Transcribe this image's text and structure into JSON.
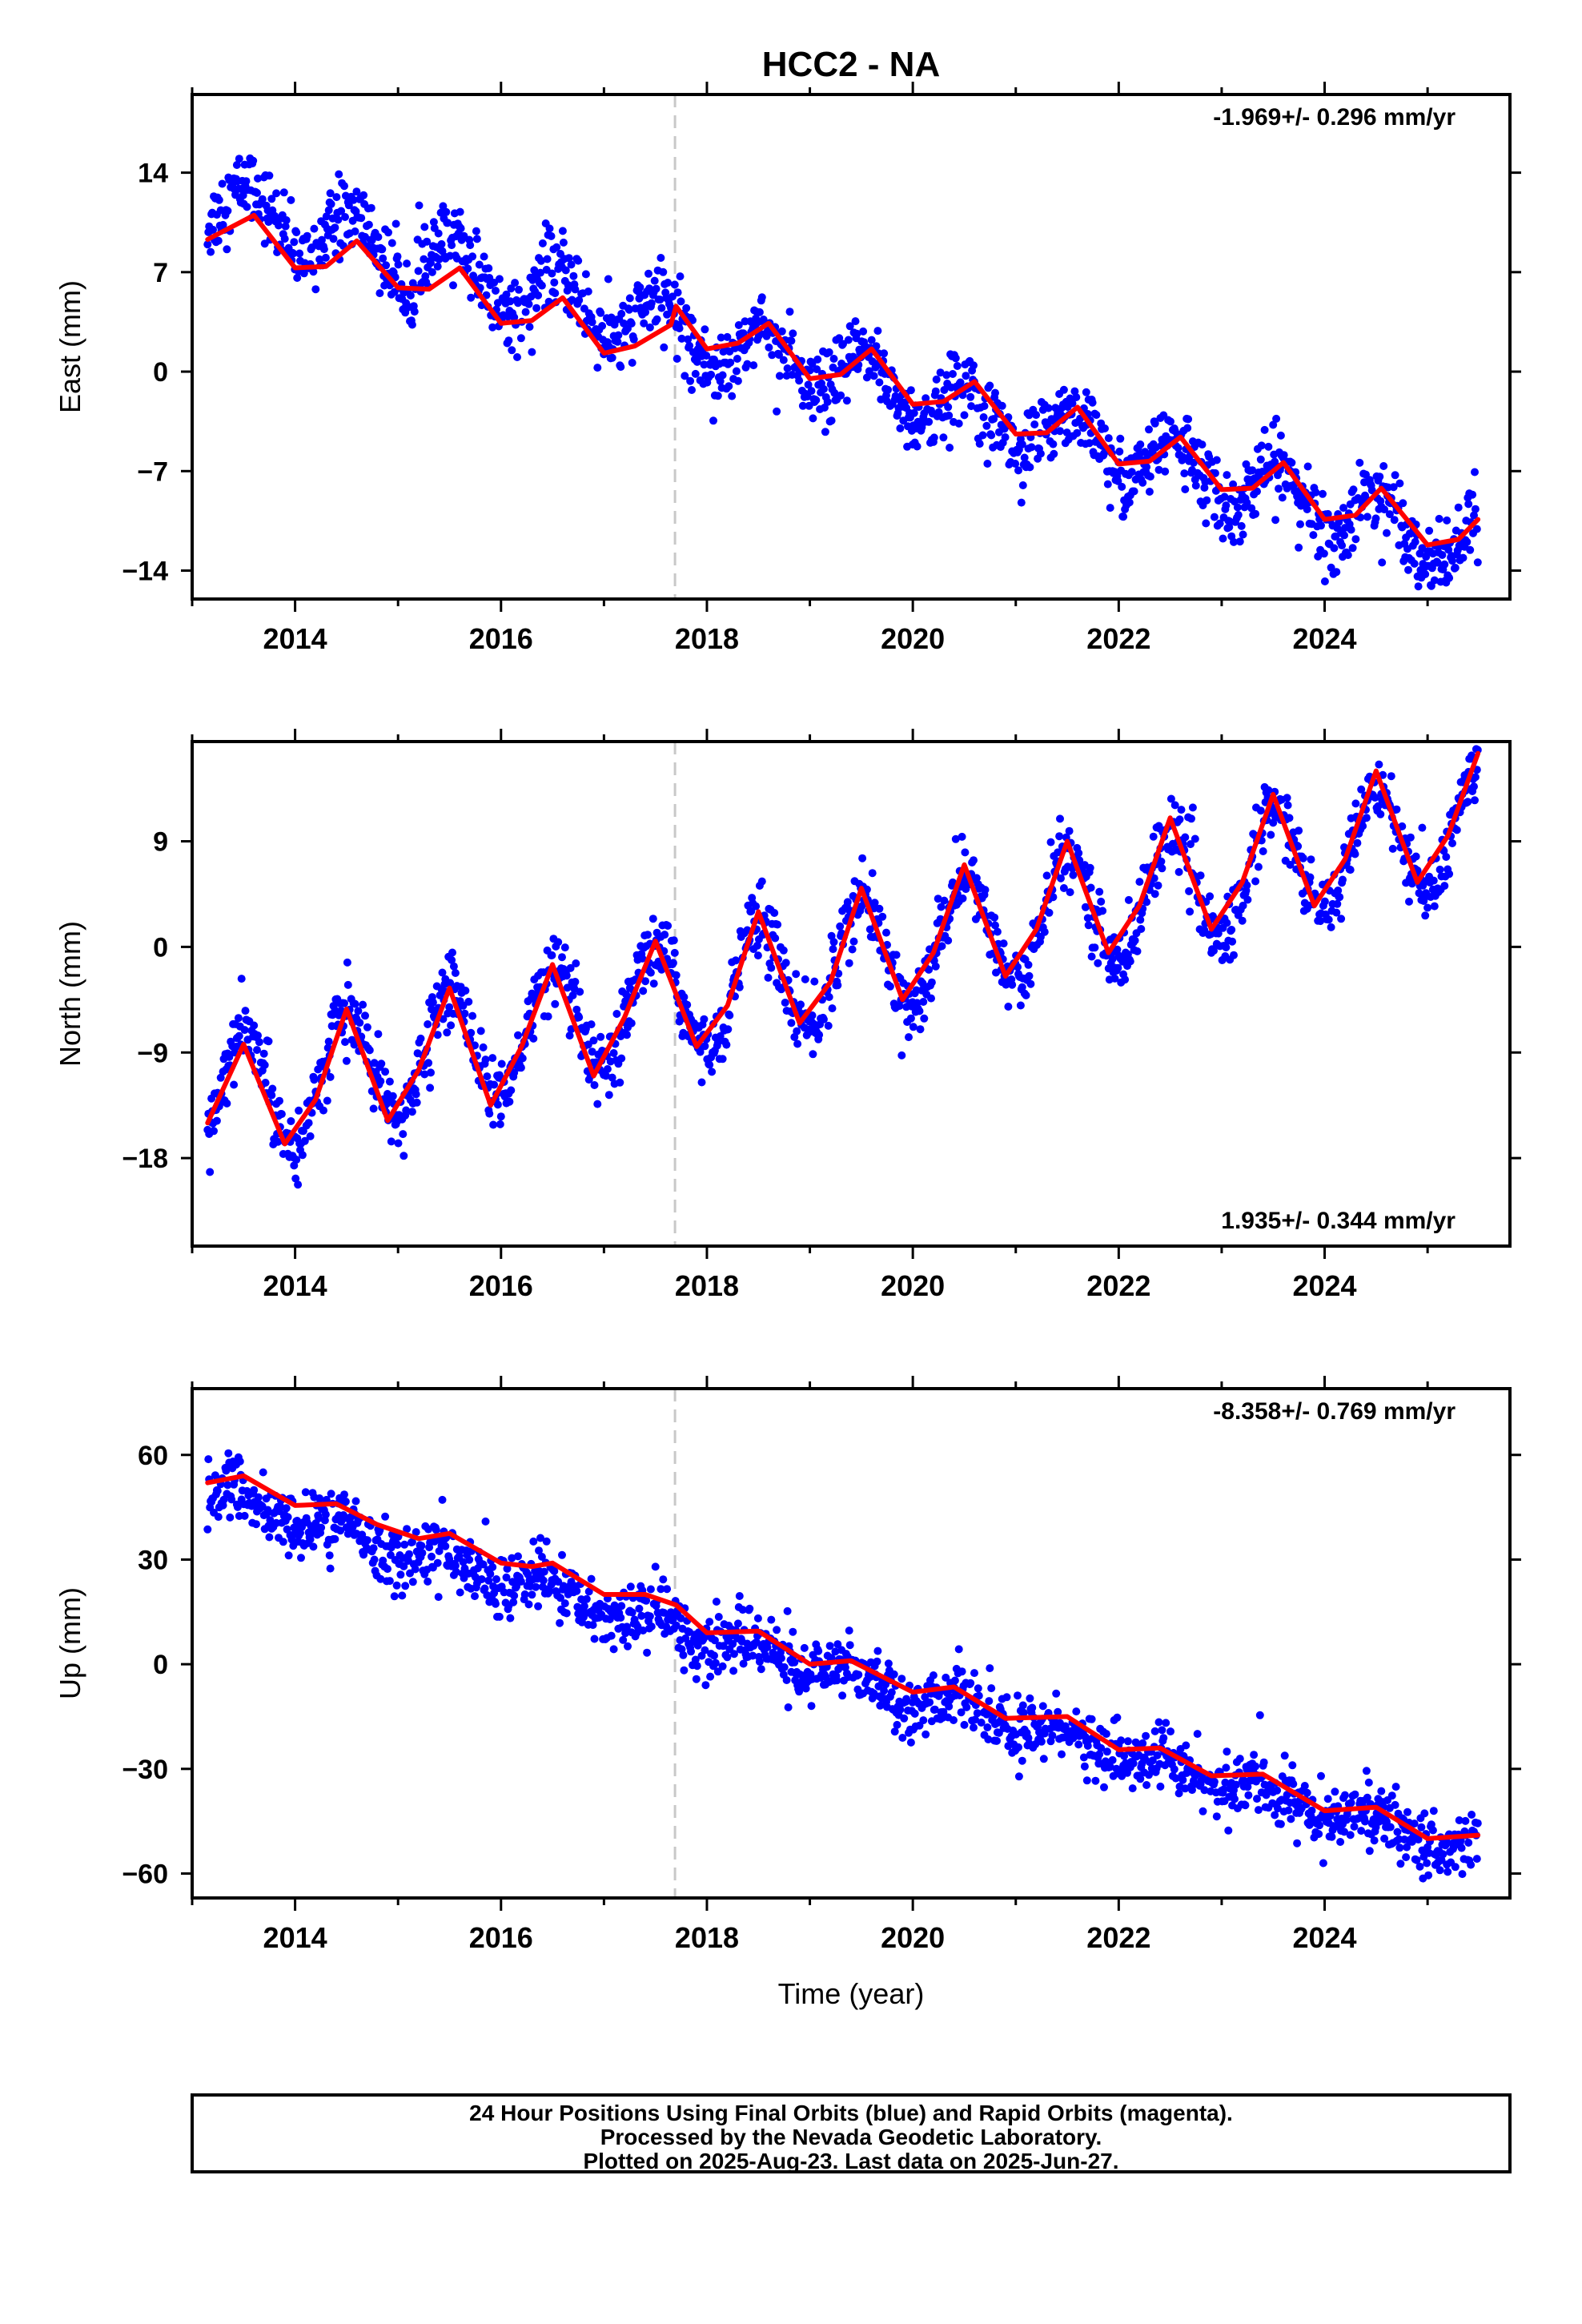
{
  "title": "HCC2 - NA",
  "xlabel": "Time (year)",
  "x_ticks": [
    "2014",
    "2016",
    "2018",
    "2020",
    "2022",
    "2024"
  ],
  "footer": {
    "line1": "24 Hour Positions Using Final Orbits (blue) and Rapid Orbits (magenta).",
    "line2": "Processed by the Nevada Geodetic Laboratory.",
    "line3": "Plotted on 2025-Aug-23. Last data on 2025-Jun-27."
  },
  "colors": {
    "points": "#0000ff",
    "model": "#ff0000",
    "reference_line": "#c8c8c8",
    "frame": "#000000"
  },
  "chart_data": [
    {
      "type": "scatter",
      "name": "east",
      "ylabel": "East (mm)",
      "rate_label": "-1.969+/- 0.296 mm/yr",
      "rate_position": "top-right",
      "xlim": [
        2013.0,
        2025.8
      ],
      "ylim": [
        -16.0,
        19.5
      ],
      "y_ticks": [
        14,
        7,
        0,
        -7,
        -14
      ],
      "reference_line_x": 2017.69,
      "trend": {
        "anchor_x": 2019.0,
        "anchor_y": 0.4,
        "slope": -1.969,
        "annual_amp": 2.0,
        "annual_phase_peak": 0.55,
        "noise": 1.3,
        "start": 2013.15,
        "end": 2025.49
      },
      "model": [
        [
          2013.15,
          9.3
        ],
        [
          2013.6,
          11.0
        ],
        [
          2014.0,
          7.3
        ],
        [
          2014.3,
          7.4
        ],
        [
          2014.6,
          9.2
        ],
        [
          2015.0,
          5.9
        ],
        [
          2015.3,
          5.8
        ],
        [
          2015.6,
          7.3
        ],
        [
          2016.0,
          3.4
        ],
        [
          2016.3,
          3.6
        ],
        [
          2016.6,
          5.2
        ],
        [
          2017.0,
          1.3
        ],
        [
          2017.3,
          1.8
        ],
        [
          2017.65,
          3.3
        ],
        [
          2017.7,
          4.6
        ],
        [
          2018.0,
          1.6
        ],
        [
          2018.3,
          2.0
        ],
        [
          2018.6,
          3.4
        ],
        [
          2019.0,
          -0.5
        ],
        [
          2019.3,
          -0.2
        ],
        [
          2019.6,
          1.6
        ],
        [
          2020.0,
          -2.3
        ],
        [
          2020.3,
          -2.1
        ],
        [
          2020.6,
          -0.7
        ],
        [
          2021.0,
          -4.4
        ],
        [
          2021.3,
          -4.3
        ],
        [
          2021.6,
          -2.5
        ],
        [
          2022.0,
          -6.5
        ],
        [
          2022.3,
          -6.3
        ],
        [
          2022.6,
          -4.6
        ],
        [
          2023.0,
          -8.3
        ],
        [
          2023.3,
          -8.2
        ],
        [
          2023.6,
          -6.4
        ],
        [
          2024.0,
          -10.4
        ],
        [
          2024.3,
          -10.1
        ],
        [
          2024.55,
          -8.2
        ],
        [
          2025.0,
          -12.2
        ],
        [
          2025.3,
          -11.8
        ],
        [
          2025.49,
          -10.4
        ]
      ]
    },
    {
      "type": "scatter",
      "name": "north",
      "ylabel": "North (mm)",
      "rate_label": "1.935+/- 0.344 mm/yr",
      "rate_position": "bottom-right",
      "xlim": [
        2013.0,
        2025.8
      ],
      "ylim": [
        -25.5,
        17.5
      ],
      "y_ticks": [
        9,
        0,
        -9,
        -18
      ],
      "reference_line_x": 2017.69,
      "trend": {
        "anchor_x": 2019.0,
        "anchor_y": -2.0,
        "slope": 1.935,
        "annual_amp": 5.0,
        "annual_phase_peak": 0.5,
        "noise": 1.5,
        "start": 2013.15,
        "end": 2025.49
      },
      "model": [
        [
          2013.15,
          -15.0
        ],
        [
          2013.5,
          -8.3
        ],
        [
          2013.9,
          -16.8
        ],
        [
          2014.2,
          -13.0
        ],
        [
          2014.5,
          -5.3
        ],
        [
          2014.9,
          -14.8
        ],
        [
          2015.2,
          -10.5
        ],
        [
          2015.5,
          -3.5
        ],
        [
          2015.9,
          -13.5
        ],
        [
          2016.2,
          -8.5
        ],
        [
          2016.5,
          -1.5
        ],
        [
          2016.9,
          -11.0
        ],
        [
          2017.2,
          -6.0
        ],
        [
          2017.5,
          0.5
        ],
        [
          2017.9,
          -8.5
        ],
        [
          2018.2,
          -5.0
        ],
        [
          2018.5,
          3.0
        ],
        [
          2018.9,
          -6.5
        ],
        [
          2019.2,
          -3.0
        ],
        [
          2019.5,
          5.0
        ],
        [
          2019.9,
          -4.5
        ],
        [
          2020.2,
          -0.5
        ],
        [
          2020.5,
          7.0
        ],
        [
          2020.9,
          -2.5
        ],
        [
          2021.2,
          1.5
        ],
        [
          2021.5,
          9.0
        ],
        [
          2021.9,
          -0.5
        ],
        [
          2022.2,
          3.5
        ],
        [
          2022.5,
          11.0
        ],
        [
          2022.9,
          1.5
        ],
        [
          2023.2,
          5.5
        ],
        [
          2023.5,
          13.0
        ],
        [
          2023.9,
          3.5
        ],
        [
          2024.2,
          7.5
        ],
        [
          2024.5,
          15.0
        ],
        [
          2024.9,
          5.5
        ],
        [
          2025.2,
          9.5
        ],
        [
          2025.49,
          16.5
        ]
      ]
    },
    {
      "type": "scatter",
      "name": "up",
      "ylabel": "Up (mm)",
      "rate_label": "-8.358+/- 0.769 mm/yr",
      "rate_position": "top-right",
      "xlim": [
        2013.0,
        2025.8
      ],
      "ylim": [
        -67.0,
        79.0
      ],
      "y_ticks": [
        60,
        30,
        0,
        -30,
        -60
      ],
      "reference_line_x": 2017.69,
      "trend": {
        "anchor_x": 2019.0,
        "anchor_y": 0.0,
        "slope": -8.358,
        "annual_amp": 3.0,
        "annual_phase_peak": 0.45,
        "noise": 4.5,
        "start": 2013.15,
        "end": 2025.49
      },
      "model": [
        [
          2013.15,
          52.0
        ],
        [
          2013.5,
          54.0
        ],
        [
          2014.0,
          45.5
        ],
        [
          2014.4,
          46.0
        ],
        [
          2014.8,
          40.0
        ],
        [
          2015.2,
          36.0
        ],
        [
          2015.5,
          37.5
        ],
        [
          2016.0,
          29.0
        ],
        [
          2016.3,
          28.0
        ],
        [
          2016.5,
          29.0
        ],
        [
          2017.0,
          20.0
        ],
        [
          2017.4,
          20.0
        ],
        [
          2017.7,
          17.0
        ],
        [
          2018.0,
          9.0
        ],
        [
          2018.5,
          9.5
        ],
        [
          2019.0,
          0.0
        ],
        [
          2019.4,
          1.0
        ],
        [
          2020.0,
          -8.0
        ],
        [
          2020.4,
          -6.5
        ],
        [
          2020.9,
          -15.5
        ],
        [
          2021.5,
          -15.0
        ],
        [
          2022.0,
          -24.5
        ],
        [
          2022.4,
          -24.0
        ],
        [
          2022.9,
          -32.0
        ],
        [
          2023.4,
          -31.5
        ],
        [
          2024.0,
          -42.0
        ],
        [
          2024.5,
          -41.0
        ],
        [
          2025.0,
          -50.0
        ],
        [
          2025.49,
          -49.0
        ]
      ]
    }
  ]
}
